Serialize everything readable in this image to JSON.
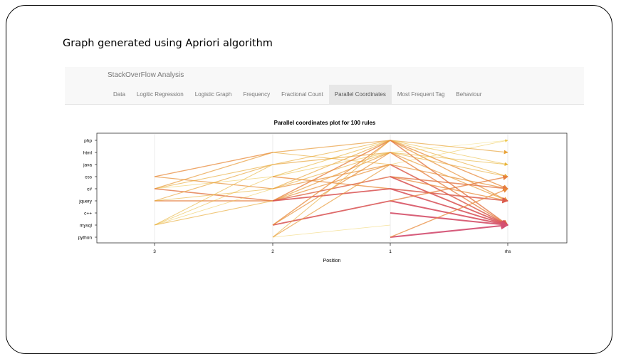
{
  "slide": {
    "title": "Graph generated using Apriori algorithm"
  },
  "app": {
    "brand": "StackOverFlow Analysis",
    "tabs": [
      {
        "label": "Data"
      },
      {
        "label": "Logitic Regression"
      },
      {
        "label": "Logistic Graph"
      },
      {
        "label": "Frequency"
      },
      {
        "label": "Fractional Count"
      },
      {
        "label": "Parallel Coordinates",
        "active": true
      },
      {
        "label": "Most Frequent Tag"
      },
      {
        "label": "Behaviour"
      }
    ]
  },
  "chart_data": {
    "type": "parallel-coordinates",
    "title": "Parallel coordinates plot for 100 rules",
    "xlabel": "Position",
    "x_axis": [
      "3",
      "2",
      "1",
      "rhs"
    ],
    "y_items": [
      "php",
      "html",
      "java",
      "css",
      "c#",
      "jquery",
      "c++",
      "mysql",
      "python"
    ],
    "grid": true,
    "color_scale": [
      "#f5e06a",
      "#e8b43a",
      "#e88a3a",
      "#d85050",
      "#d2507a"
    ],
    "rules": [
      {
        "path": [
          null,
          null,
          "php",
          "html"
        ],
        "level": 0.35
      },
      {
        "path": [
          null,
          null,
          "php",
          "java"
        ],
        "level": 0.2
      },
      {
        "path": [
          null,
          null,
          "php",
          "css"
        ],
        "level": 0.3
      },
      {
        "path": [
          null,
          null,
          "php",
          "c#"
        ],
        "level": 0.5
      },
      {
        "path": [
          null,
          null,
          "php",
          "jquery"
        ],
        "level": 0.45
      },
      {
        "path": [
          null,
          null,
          "php",
          "mysql"
        ],
        "level": 0.6
      },
      {
        "path": [
          null,
          null,
          "html",
          "php"
        ],
        "level": 0.05
      },
      {
        "path": [
          null,
          null,
          "html",
          "java"
        ],
        "level": 0.25
      },
      {
        "path": [
          null,
          null,
          "html",
          "css"
        ],
        "level": 0.3
      },
      {
        "path": [
          null,
          null,
          "html",
          "jquery"
        ],
        "level": 0.4
      },
      {
        "path": [
          null,
          null,
          "html",
          "mysql"
        ],
        "level": 0.55
      },
      {
        "path": [
          null,
          null,
          "java",
          "php"
        ],
        "level": 0.15
      },
      {
        "path": [
          null,
          null,
          "java",
          "c#"
        ],
        "level": 0.45
      },
      {
        "path": [
          null,
          null,
          "java",
          "mysql"
        ],
        "level": 0.7
      },
      {
        "path": [
          null,
          null,
          "css",
          "c#"
        ],
        "level": 0.6
      },
      {
        "path": [
          null,
          null,
          "css",
          "jquery"
        ],
        "level": 0.5
      },
      {
        "path": [
          null,
          null,
          "css",
          "mysql"
        ],
        "level": 0.75
      },
      {
        "path": [
          null,
          null,
          "c#",
          "jquery"
        ],
        "level": 0.7
      },
      {
        "path": [
          null,
          null,
          "c#",
          "mysql"
        ],
        "level": 0.8
      },
      {
        "path": [
          null,
          null,
          "jquery",
          "mysql"
        ],
        "level": 0.85
      },
      {
        "path": [
          null,
          null,
          "jquery",
          "css"
        ],
        "level": 0.55
      },
      {
        "path": [
          null,
          null,
          "c++",
          "mysql"
        ],
        "level": 0.9
      },
      {
        "path": [
          null,
          null,
          "python",
          "mysql"
        ],
        "level": 0.95
      },
      {
        "path": [
          null,
          null,
          "python",
          "c#"
        ],
        "level": 0.5
      },
      {
        "path": [
          null,
          "html",
          "php",
          null
        ],
        "level": 0.4
      },
      {
        "path": [
          null,
          "html",
          "java",
          null
        ],
        "level": 0.3
      },
      {
        "path": [
          null,
          "java",
          "php",
          null
        ],
        "level": 0.3
      },
      {
        "path": [
          null,
          "java",
          "html",
          null
        ],
        "level": 0.35
      },
      {
        "path": [
          null,
          "css",
          "php",
          null
        ],
        "level": 0.25
      },
      {
        "path": [
          null,
          "css",
          "html",
          null
        ],
        "level": 0.2
      },
      {
        "path": [
          null,
          "css",
          "c#",
          null
        ],
        "level": 0.5
      },
      {
        "path": [
          null,
          "c#",
          "php",
          null
        ],
        "level": 0.35
      },
      {
        "path": [
          null,
          "c#",
          "java",
          null
        ],
        "level": 0.45
      },
      {
        "path": [
          null,
          "c#",
          "html",
          null
        ],
        "level": 0.3
      },
      {
        "path": [
          null,
          "jquery",
          "php",
          null
        ],
        "level": 0.55
      },
      {
        "path": [
          null,
          "jquery",
          "html",
          null
        ],
        "level": 0.4
      },
      {
        "path": [
          null,
          "jquery",
          "java",
          null
        ],
        "level": 0.45
      },
      {
        "path": [
          null,
          "jquery",
          "css",
          null
        ],
        "level": 0.65
      },
      {
        "path": [
          null,
          "jquery",
          "c#",
          null
        ],
        "level": 0.75
      },
      {
        "path": [
          null,
          "mysql",
          "php",
          null
        ],
        "level": 0.5
      },
      {
        "path": [
          null,
          "mysql",
          "jquery",
          null
        ],
        "level": 0.75
      },
      {
        "path": [
          null,
          "mysql",
          "html",
          null
        ],
        "level": 0.45
      },
      {
        "path": [
          null,
          "python",
          "php",
          null
        ],
        "level": 0.3
      },
      {
        "path": [
          null,
          "python",
          "java",
          null
        ],
        "level": 0.4
      },
      {
        "path": [
          null,
          "python",
          "mysql",
          null
        ],
        "level": 0.1
      },
      {
        "path": [
          "css",
          "html",
          null,
          null
        ],
        "level": 0.5
      },
      {
        "path": [
          "css",
          "c#",
          null,
          null
        ],
        "level": 0.45
      },
      {
        "path": [
          "c#",
          "html",
          null,
          null
        ],
        "level": 0.4
      },
      {
        "path": [
          "c#",
          "java",
          null,
          null
        ],
        "level": 0.3
      },
      {
        "path": [
          "c#",
          "css",
          null,
          null
        ],
        "level": 0.15
      },
      {
        "path": [
          "c#",
          "jquery",
          null,
          null
        ],
        "level": 0.6
      },
      {
        "path": [
          "jquery",
          "java",
          null,
          null
        ],
        "level": 0.35
      },
      {
        "path": [
          "jquery",
          "jquery",
          null,
          null
        ],
        "level": 0.55
      },
      {
        "path": [
          "jquery",
          "c#",
          null,
          null
        ],
        "level": 0.25
      },
      {
        "path": [
          "mysql",
          "css",
          null,
          null
        ],
        "level": 0.2
      },
      {
        "path": [
          "mysql",
          "c#",
          null,
          null
        ],
        "level": 0.15
      },
      {
        "path": [
          "mysql",
          "jquery",
          null,
          null
        ],
        "level": 0.3
      },
      {
        "path": [
          "mysql",
          "java",
          null,
          null
        ],
        "level": 0.25
      }
    ]
  }
}
